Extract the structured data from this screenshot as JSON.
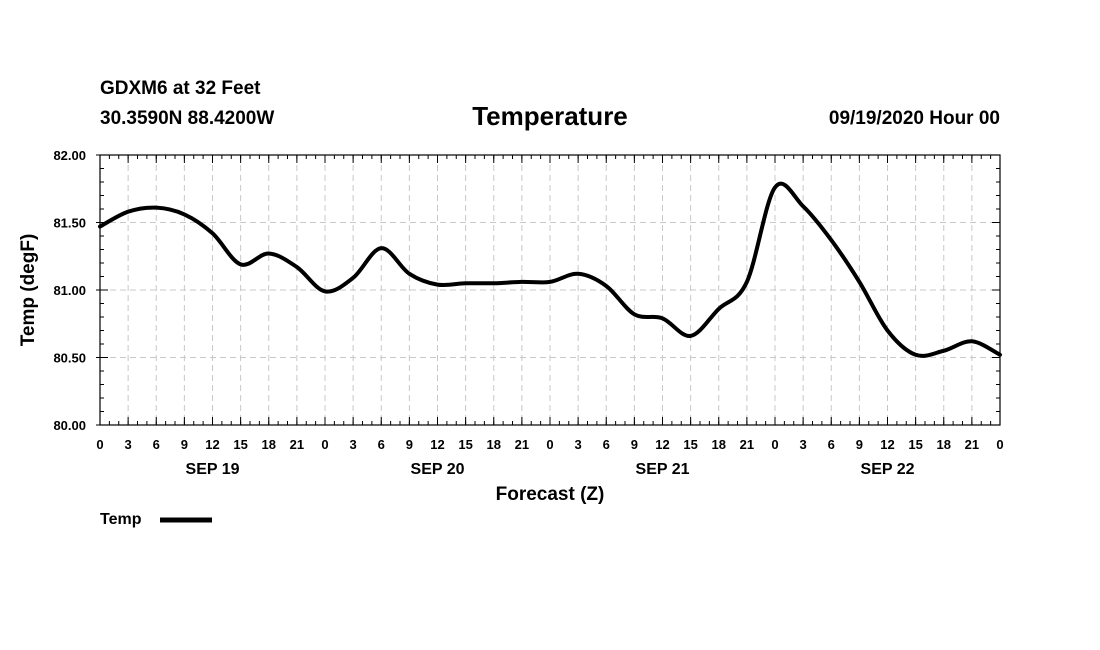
{
  "header": {
    "station": "GDXM6 at 32 Feet",
    "location": "30.3590N 88.4200W",
    "title": "Temperature",
    "run": "09/19/2020 Hour 00"
  },
  "chart_data": {
    "type": "line",
    "title": "Temperature",
    "xlabel": "Forecast (Z)",
    "ylabel": "Temp (degF)",
    "ylim": [
      80.0,
      82.0
    ],
    "xlim_hours": [
      0,
      96
    ],
    "y_ticks": [
      "80.00",
      "80.50",
      "81.00",
      "81.50",
      "82.00"
    ],
    "x_tick_labels": [
      "0",
      "3",
      "6",
      "9",
      "12",
      "15",
      "18",
      "21",
      "0",
      "3",
      "6",
      "9",
      "12",
      "15",
      "18",
      "21",
      "0",
      "3",
      "6",
      "9",
      "12",
      "15",
      "18",
      "21",
      "0",
      "3",
      "6",
      "9",
      "12",
      "15",
      "18",
      "21",
      "0"
    ],
    "day_labels": [
      {
        "label": "SEP 19",
        "hour": 12
      },
      {
        "label": "SEP 20",
        "hour": 36
      },
      {
        "label": "SEP 21",
        "hour": 60
      },
      {
        "label": "SEP 22",
        "hour": 84
      }
    ],
    "grid": true,
    "legend": [
      {
        "name": "Temp",
        "color": "#000000"
      }
    ],
    "series": [
      {
        "name": "Temp",
        "color": "#000000",
        "x": [
          0,
          3,
          6,
          9,
          12,
          15,
          18,
          21,
          24,
          27,
          30,
          33,
          36,
          39,
          42,
          45,
          48,
          51,
          54,
          57,
          60,
          63,
          66,
          69,
          72,
          75,
          78,
          81,
          84,
          87,
          90,
          93,
          96
        ],
        "values": [
          81.47,
          81.58,
          81.61,
          81.56,
          81.42,
          81.19,
          81.27,
          81.17,
          80.99,
          81.09,
          81.31,
          81.12,
          81.04,
          81.05,
          81.05,
          81.06,
          81.06,
          81.12,
          81.03,
          80.82,
          80.79,
          80.66,
          80.86,
          81.06,
          81.76,
          81.62,
          81.37,
          81.06,
          80.7,
          80.52,
          80.55,
          80.62,
          80.52
        ]
      }
    ]
  }
}
